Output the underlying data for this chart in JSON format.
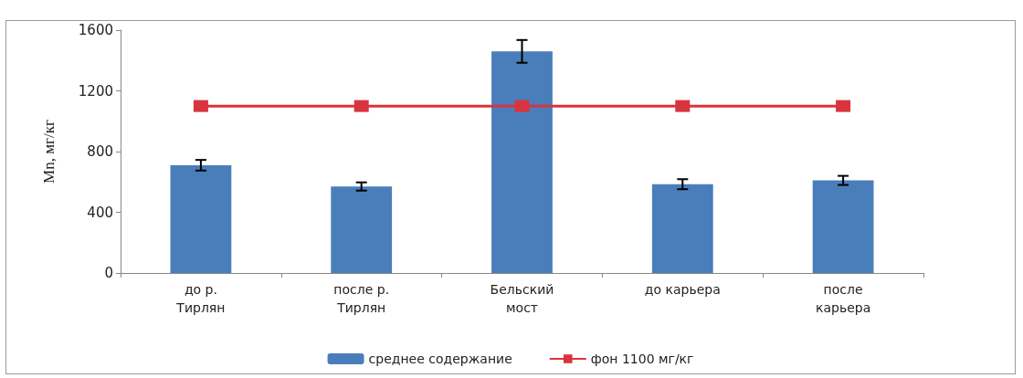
{
  "chart_data": {
    "type": "bar",
    "ylabel": "Mn, мг/кг",
    "categories": [
      "до р.\nТирлян",
      "после р.\nТирлян",
      "Бельский\nмост",
      "до карьера",
      "после\nкарьера"
    ],
    "series": [
      {
        "name": "среднее содержание",
        "color": "#4a7ebb",
        "values": [
          710,
          570,
          1460,
          585,
          610
        ],
        "errors": [
          35,
          27,
          75,
          33,
          30
        ]
      },
      {
        "name": "фон 1100 мг/кг",
        "type": "line",
        "color": "#d9343d",
        "marker": "square",
        "values": [
          1100,
          1100,
          1100,
          1100,
          1100
        ]
      }
    ],
    "ylim": [
      0,
      1600
    ],
    "yticks": [
      0,
      400,
      800,
      1200,
      1600
    ],
    "grid": false,
    "legend": "bottom"
  }
}
